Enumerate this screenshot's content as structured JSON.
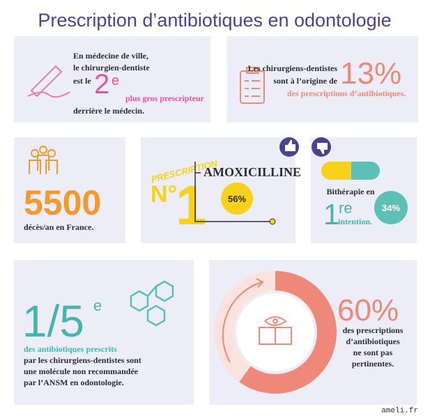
{
  "title": "Prescription d’antibiotiques en odontologie",
  "ranking": {
    "lines": [
      "En médecine de ville,",
      "le chirurgien-dentiste",
      "est le"
    ],
    "rank": "2",
    "rank_suffix": "e",
    "emphasis": "plus gros prescripteur",
    "end": "derrière le médecin."
  },
  "share": {
    "lines": [
      "Les chirurgiens-dentistes",
      "sont à l’origine de"
    ],
    "figure": "13%",
    "emphasis": "des prescriptions d’antibiotiques."
  },
  "deaths": {
    "figure": "5500",
    "caption": "décès/an en France."
  },
  "first_choice": {
    "tag": "PRESCRIPTION",
    "prefix": "N°",
    "rank": "1",
    "molecule": "AMOXICILLINE",
    "percent": "56%"
  },
  "bitherapy": {
    "line": "Bithérapie en",
    "rank": "1",
    "rank_suffix": "re",
    "emphasis": "intention.",
    "percent": "34%"
  },
  "not_recommended": {
    "fraction": "1/5",
    "suffix": "e",
    "emphasis": "des antibiotiques prescrits",
    "lines": [
      "par les chirurgiens-dentistes sont",
      "une molécule non recommandée",
      "par l’ANSM en odontologie."
    ]
  },
  "not_relevant": {
    "donut": {
      "value": 60,
      "label": "60%"
    },
    "lines": [
      "des prescriptions",
      "d’antibiotiques",
      "ne sont pas",
      "pertinentes."
    ]
  },
  "source": "ameli.fr"
}
